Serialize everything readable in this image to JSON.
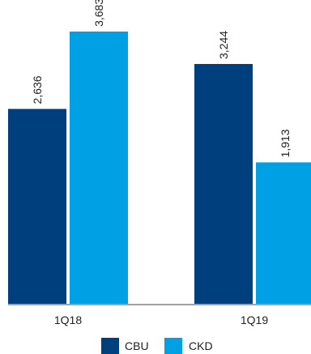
{
  "chart_data": {
    "type": "bar",
    "categories": [
      "1Q18",
      "1Q19"
    ],
    "series": [
      {
        "name": "CBU",
        "values": [
          2636,
          3244
        ],
        "labels": [
          "2,636",
          "3,244"
        ],
        "color": "#003f7d"
      },
      {
        "name": "CKD",
        "values": [
          3683,
          1913
        ],
        "labels": [
          "3,683",
          "1,913"
        ],
        "color": "#00a1e4"
      }
    ],
    "ylim": [
      0,
      4000
    ],
    "grid": false,
    "legend": "bottom"
  }
}
